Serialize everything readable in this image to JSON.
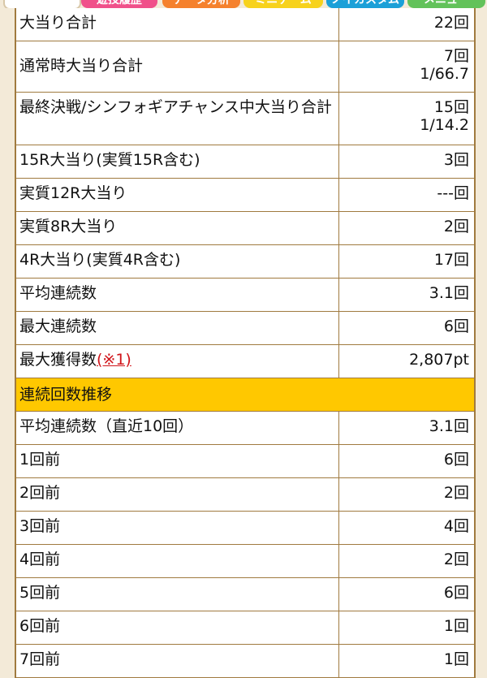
{
  "tabs": [
    "遊技履歴",
    "データ分析",
    "ミニゲーム",
    "ノイカスタム",
    "メニュー"
  ],
  "stats": [
    {
      "label": "大当り合計",
      "value": "22回"
    },
    {
      "label": "通常時大当り合計",
      "value": "7回",
      "value2": "1/66.7"
    },
    {
      "label": "最終決戦/シンフォギアチャンス中大当り合計",
      "value": "15回",
      "value2": "1/14.2"
    },
    {
      "label": "15R大当り(実質15R含む)",
      "value": "3回"
    },
    {
      "label": "実質12R大当り",
      "value": "---回"
    },
    {
      "label": "実質8R大当り",
      "value": "2回"
    },
    {
      "label": "4R大当り(実質4R含む)",
      "value": "17回"
    },
    {
      "label": "平均連続数",
      "value": "3.1回"
    },
    {
      "label": "最大連続数",
      "value": "6回"
    },
    {
      "label": "最大獲得数",
      "note": "(※1)",
      "value": "2,807pt"
    }
  ],
  "section_title": "連続回数推移",
  "history": [
    {
      "label": "平均連続数（直近10回）",
      "value": "3.1回"
    },
    {
      "label": "1回前",
      "value": "6回"
    },
    {
      "label": "2回前",
      "value": "2回"
    },
    {
      "label": "3回前",
      "value": "4回"
    },
    {
      "label": "4回前",
      "value": "2回"
    },
    {
      "label": "5回前",
      "value": "6回"
    },
    {
      "label": "6回前",
      "value": "1回"
    },
    {
      "label": "7回前",
      "value": "1回"
    }
  ]
}
